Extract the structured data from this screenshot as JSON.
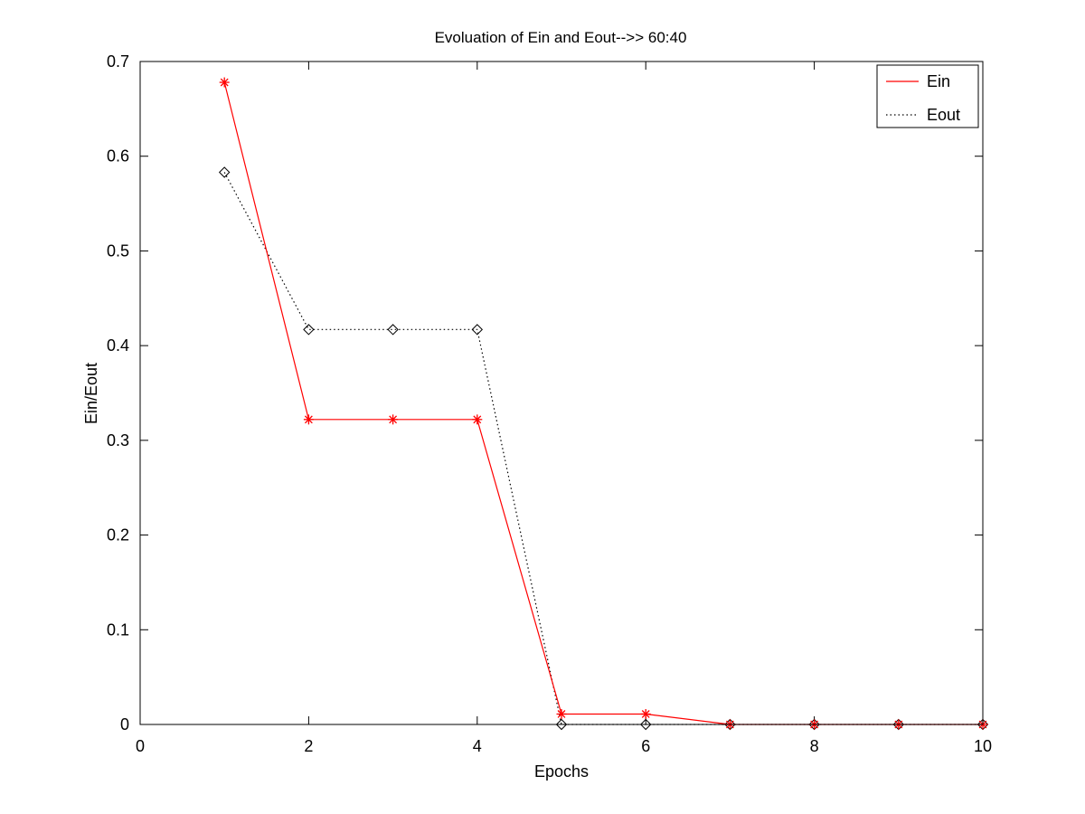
{
  "chart_data": {
    "type": "line",
    "title": "Evoluation of Ein and Eout-->> 60:40",
    "xlabel": "Epochs",
    "ylabel": "Ein/Eout",
    "xlim": [
      0,
      10
    ],
    "ylim": [
      0,
      0.7
    ],
    "xticks": [
      0,
      2,
      4,
      6,
      8,
      10
    ],
    "yticks": [
      0,
      0.1,
      0.2,
      0.3,
      0.4,
      0.5,
      0.6,
      0.7
    ],
    "xtick_labels": [
      "0",
      "2",
      "4",
      "6",
      "8",
      "10"
    ],
    "ytick_labels": [
      "0",
      "0.1",
      "0.2",
      "0.3",
      "0.4",
      "0.5",
      "0.6",
      "0.7"
    ],
    "grid": false,
    "legend_position": "top-right",
    "x": [
      1,
      2,
      3,
      4,
      5,
      6,
      7,
      8,
      9,
      10
    ],
    "series": [
      {
        "name": "Ein",
        "color": "#ff0000",
        "line_style": "solid",
        "marker": "asterisk",
        "values": [
          0.678,
          0.322,
          0.322,
          0.322,
          0.011,
          0.011,
          0.0,
          0.0,
          0.0,
          0.0
        ]
      },
      {
        "name": "Eout",
        "color": "#000000",
        "line_style": "dotted",
        "marker": "diamond",
        "values": [
          0.583,
          0.417,
          0.417,
          0.417,
          0.0,
          0.0,
          0.0,
          0.0,
          0.0,
          0.0
        ]
      }
    ]
  }
}
